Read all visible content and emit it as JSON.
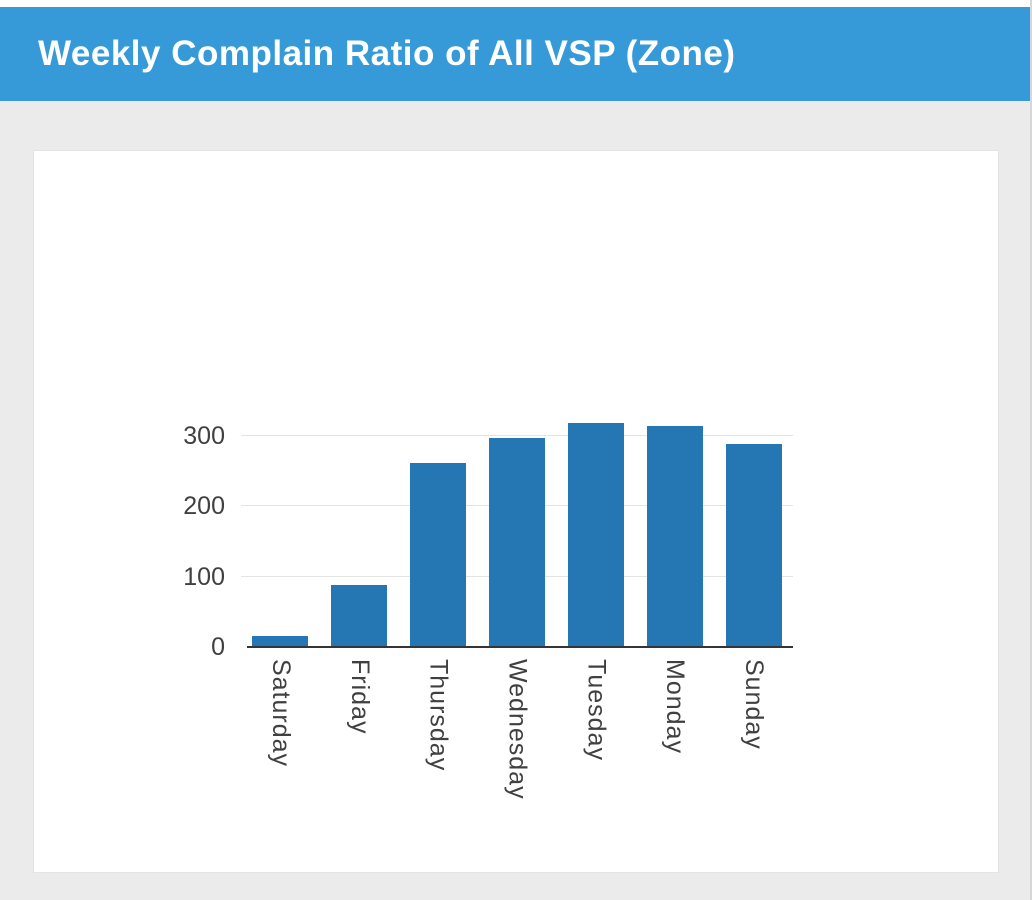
{
  "header": {
    "title": "Weekly Complain Ratio of All VSP (Zone)",
    "background_color": "#3699d8",
    "text_color": "#ffffff"
  },
  "page": {
    "content_background": "#ebebeb",
    "card_background": "#ffffff"
  },
  "chart_data": {
    "type": "bar",
    "title": "Weekly Complain Ratio of All VSP (Zone)",
    "categories": [
      "Saturday",
      "Friday",
      "Thursday",
      "Wednesday",
      "Tuesday",
      "Monday",
      "Sunday"
    ],
    "values": [
      15,
      88,
      262,
      297,
      319,
      314,
      289
    ],
    "xlabel": "",
    "ylabel": "",
    "ylim": [
      0,
      350
    ],
    "yticks": [
      0,
      100,
      200,
      300
    ],
    "bar_color": "#2577b4",
    "grid": true,
    "gridline_color": "#e4e4e4",
    "axis_line_color": "#353535",
    "tick_label_color": "#404040",
    "legend": false,
    "x_label_rotation": 90
  }
}
